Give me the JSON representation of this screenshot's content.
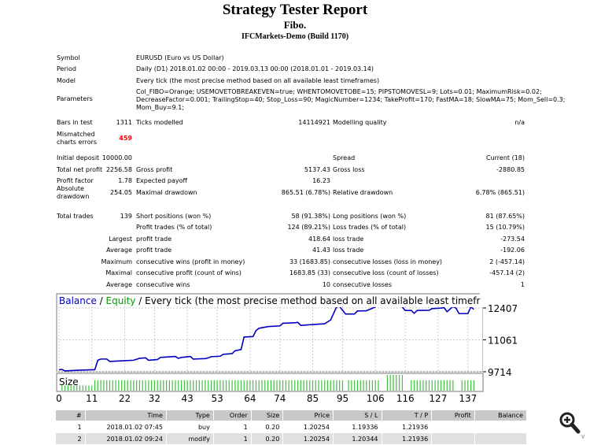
{
  "header": {
    "title": "Strategy Tester Report",
    "expert": "Fibo.",
    "server": "IFCMarkets-Demo (Build 1170)"
  },
  "info": {
    "symbol_label": "Symbol",
    "symbol": "EURUSD (Euro vs US Dollar)",
    "period_label": "Period",
    "period": "Daily (D1) 2018.01.02 00:00 - 2019.03.13 00:00 (2018.01.01 - 2019.03.14)",
    "model_label": "Model",
    "model": "Every tick (the most precise method based on all available least timeframes)",
    "params_label": "Parameters",
    "params": [
      "Col_FIBO=Orange; USEMOVETOBREAKEVEN=true; WHENTOMOVETOBE=15; PIPSTOMOVESL=9; Lots=0.01; MaximumRisk=0.02;",
      "DecreaseFactor=0.001; TrailingStop=40; Stop_Loss=90; MagicNumber=1234; TakeProfit=170; FastMA=18; SlowMA=75; Mom_Sell=0.3;",
      "Mom_Buy=9.1;"
    ],
    "bars_label": "Bars in test",
    "bars": "1311",
    "ticks_label": "Ticks modelled",
    "ticks": "14114921",
    "quality_label": "Modelling quality",
    "quality": "n/a",
    "mismatch_label": [
      "Mismatched",
      "charts errors"
    ],
    "mismatch": "459",
    "mismatch_color": "#ff0000"
  },
  "stats": [
    {
      "a": "Initial deposit",
      "av": "10000.00",
      "b": "",
      "bv": "",
      "c": "Spread",
      "cv": "Current (18)"
    },
    {
      "a": "Total net profit",
      "av": "2256.58",
      "b": "Gross profit",
      "bv": "5137.43",
      "c": "Gross loss",
      "cv": "-2880.85"
    },
    {
      "a": "Profit factor",
      "av": "1.78",
      "b": "Expected payoff",
      "bv": "16.23",
      "c": "",
      "cv": ""
    },
    {
      "a": "Absolute drawdown",
      "av": "254.05",
      "b": "Maximal drawdown",
      "bv": "865.51 (6.78%)",
      "c": "Relative drawdown",
      "cv": "6.78% (865.51)"
    },
    {
      "a": "Total trades",
      "av": "139",
      "b": "Short positions (won %)",
      "bv": "58 (91.38%)",
      "c": "Long positions (won %)",
      "cv": "81 (87.65%)"
    },
    {
      "a": "",
      "av": "",
      "b": "Profit trades (% of total)",
      "bv": "124 (89.21%)",
      "c": "Loss trades (% of total)",
      "cv": "15 (10.79%)"
    },
    {
      "a": "",
      "av": "Largest",
      "b": "profit trade",
      "bv": "418.64",
      "c": "loss trade",
      "cv": "-273.54"
    },
    {
      "a": "",
      "av": "Average",
      "b": "profit trade",
      "bv": "41.43",
      "c": "loss trade",
      "cv": "-192.06"
    },
    {
      "a": "",
      "av": "Maximum",
      "b": "consecutive wins (profit in money)",
      "bv": "33 (1683.85)",
      "c": "consecutive losses (loss in money)",
      "cv": "2 (-457.14)"
    },
    {
      "a": "",
      "av": "Maximal",
      "b": "consecutive profit (count of wins)",
      "bv": "1683.85 (33)",
      "c": "consecutive loss (count of losses)",
      "cv": "-457.14 (2)"
    },
    {
      "a": "",
      "av": "Average",
      "b": "consecutive wins",
      "bv": "10",
      "c": "consecutive losses",
      "cv": "1"
    }
  ],
  "chart_data": {
    "type": "line",
    "title_parts": [
      "Balance",
      " / ",
      "Equity",
      " / Every tick (the most precise method based on all available least timeframes to generat"
    ],
    "colors": {
      "balance": "#0000c0",
      "equity": "#00a000",
      "size": "#40c040"
    },
    "y_ticks": [
      12407,
      11061,
      9714
    ],
    "x_ticks": [
      0,
      11,
      22,
      32,
      43,
      53,
      64,
      74,
      85,
      95,
      106,
      116,
      127,
      137
    ],
    "size_label": "Size",
    "grid": true,
    "balance": [
      [
        0,
        9800
      ],
      [
        1,
        9810
      ],
      [
        2,
        9750
      ],
      [
        5,
        9770
      ],
      [
        11,
        9800
      ],
      [
        12,
        9800
      ],
      [
        13,
        10200
      ],
      [
        14,
        10250
      ],
      [
        16,
        10250
      ],
      [
        17,
        10150
      ],
      [
        22,
        10180
      ],
      [
        25,
        10200
      ],
      [
        27,
        10280
      ],
      [
        29,
        10300
      ],
      [
        30,
        10200
      ],
      [
        33,
        10230
      ],
      [
        34,
        10320
      ],
      [
        39,
        10360
      ],
      [
        40,
        10280
      ],
      [
        41,
        10320
      ],
      [
        44,
        10360
      ],
      [
        45,
        10250
      ],
      [
        49,
        10270
      ],
      [
        50,
        10300
      ],
      [
        51,
        10350
      ],
      [
        54,
        10370
      ],
      [
        55,
        10450
      ],
      [
        58,
        10480
      ],
      [
        59,
        10600
      ],
      [
        61,
        10650
      ],
      [
        62,
        11180
      ],
      [
        65,
        11200
      ],
      [
        66,
        11450
      ],
      [
        67,
        11550
      ],
      [
        70,
        11620
      ],
      [
        74,
        11650
      ],
      [
        75,
        11760
      ],
      [
        79,
        11780
      ],
      [
        80,
        11800
      ],
      [
        81,
        11670
      ],
      [
        84,
        11700
      ],
      [
        89,
        11740
      ],
      [
        91,
        11900
      ],
      [
        93,
        12450
      ],
      [
        94,
        12470
      ],
      [
        96,
        12150
      ],
      [
        99,
        12150
      ],
      [
        100,
        12280
      ],
      [
        103,
        12290
      ],
      [
        106,
        12450
      ],
      [
        107,
        12700
      ],
      [
        113,
        12700
      ],
      [
        115,
        12450
      ],
      [
        116,
        12300
      ],
      [
        118,
        12300
      ],
      [
        119,
        12180
      ],
      [
        120,
        12300
      ],
      [
        124,
        12310
      ],
      [
        125,
        12380
      ],
      [
        128,
        12400
      ],
      [
        129,
        12420
      ],
      [
        130,
        12250
      ],
      [
        132,
        12470
      ],
      [
        133,
        12400
      ],
      [
        134,
        12170
      ],
      [
        137,
        12170
      ],
      [
        138,
        12450
      ],
      [
        139,
        12350
      ]
    ],
    "sizes": [
      0.1,
      0.1,
      0.1,
      0.1,
      0.1,
      0.1,
      0.1,
      0.1,
      0.1,
      0.1,
      0.1,
      0.2,
      0.2,
      0.2,
      0.2,
      0.2,
      0.2,
      0.2,
      0.2,
      0.2,
      0.2,
      0.2,
      0.2,
      0.2,
      0.2,
      0.2,
      0.2,
      0.2,
      0.2,
      0.2,
      0.2,
      0.2,
      0.2,
      0.2,
      0.2,
      0.2,
      0.2,
      0.2,
      0.2,
      0.2,
      0.2,
      0.2,
      0.2,
      0.2,
      0.2,
      0.2,
      0.2,
      0.2,
      0.2,
      0.2,
      0.2,
      0.2,
      0.2,
      0.2,
      0.2,
      0.2,
      0.2,
      0.2,
      0.2,
      0.2,
      0.2,
      0.2,
      0.2,
      0.2,
      0.2,
      0.2,
      0.2,
      0.2,
      0.2,
      0.2,
      0.2,
      0.2,
      0.2,
      0.2,
      0.2,
      0.2,
      0.2,
      0.2,
      0.2,
      0.2,
      0.2,
      0.2,
      0.2,
      0.2,
      0.2,
      0.2,
      0.2,
      0.2,
      0.2,
      0.2,
      0.2,
      0.2,
      0.2,
      0.2,
      0.2,
      0,
      0.2,
      0.2,
      0.2,
      0.2,
      0.2,
      0.2,
      0.2,
      0.2,
      0.2,
      0.2,
      0.2,
      0,
      0,
      0.3,
      0.3,
      0.3,
      0.3,
      0.3,
      0.3,
      0,
      0,
      0.2,
      0.2,
      0.2,
      0.2,
      0.2,
      0.2,
      0.2,
      0.2,
      0.2,
      0.2,
      0.2,
      0.2,
      0.2,
      0.2,
      0.2,
      0,
      0,
      0.2,
      0.2,
      0.2,
      0.2,
      0.2
    ]
  },
  "table": {
    "headers": [
      "#",
      "Time",
      "Type",
      "Order",
      "Size",
      "Price",
      "S / L",
      "T / P",
      "Profit",
      "Balance"
    ],
    "rows": [
      [
        "1",
        "2018.01.02 07:45",
        "buy",
        "1",
        "0.20",
        "1.20254",
        "1.19336",
        "1.21936",
        "",
        ""
      ],
      [
        "2",
        "2018.01.02 09:24",
        "modify",
        "1",
        "0.20",
        "1.20254",
        "1.20344",
        "1.21936",
        "",
        ""
      ]
    ]
  }
}
